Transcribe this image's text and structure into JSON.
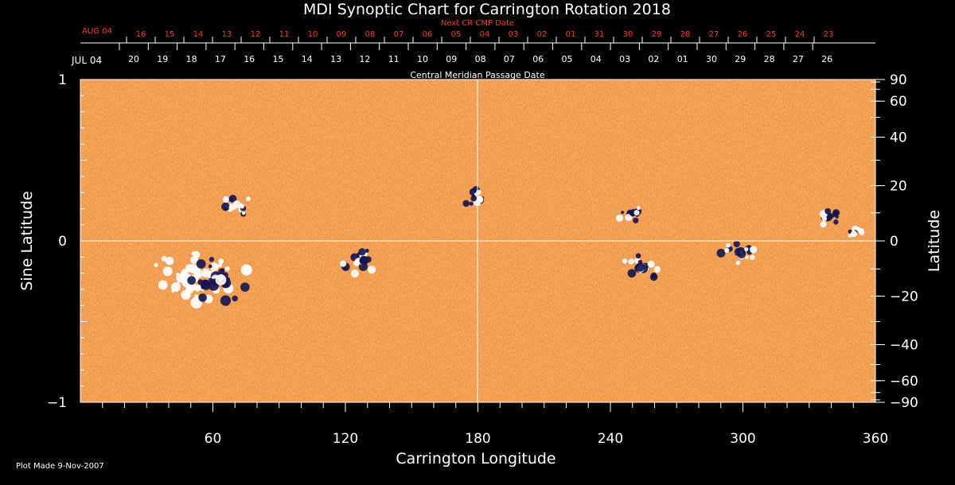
{
  "title": "MDI Synoptic Chart for Carrington Rotation 2018",
  "footer": "Plot Made  9-Nov-2007",
  "colors": {
    "background": "#000000",
    "foreground": "#ffffff",
    "next_cr_labels": "#ff3a1a",
    "map_base": "#e8501a",
    "map_light": "#ffb347",
    "map_dark": "#b5290f",
    "positive_polarity": "#ffffff",
    "negative_polarity": "#1a1a5e"
  },
  "chart_data": {
    "type": "heatmap",
    "title": "MDI Synoptic Chart for Carrington Rotation 2018",
    "xlabel": "Carrington Longitude",
    "ylabel_left": "Sine Latitude",
    "ylabel_right": "Latitude",
    "xlim": [
      0,
      360
    ],
    "ylim": [
      -1,
      1
    ],
    "x_ticks": [
      60,
      120,
      180,
      240,
      300,
      360
    ],
    "y_ticks_left": [
      {
        "value": 1,
        "label": "1"
      },
      {
        "value": 0,
        "label": "0"
      },
      {
        "value": -1,
        "label": "−1"
      }
    ],
    "y_ticks_right": [
      90,
      60,
      40,
      20,
      0,
      -20,
      -40,
      -60,
      -90
    ],
    "cmp_axis": {
      "label": "Central Meridian Passage Date",
      "start_label": "JUL 04",
      "dates": [
        "20",
        "19",
        "18",
        "17",
        "16",
        "15",
        "14",
        "13",
        "12",
        "11",
        "10",
        "09",
        "08",
        "07",
        "06",
        "05",
        "04",
        "03",
        "02",
        "01",
        "30",
        "29",
        "28",
        "27",
        "26"
      ]
    },
    "next_cr_axis": {
      "label": "Next CR CMP Date",
      "start_label": "AUG 04",
      "dates": [
        "16",
        "15",
        "14",
        "13",
        "12",
        "11",
        "10",
        "09",
        "08",
        "07",
        "06",
        "05",
        "04",
        "03",
        "02",
        "01",
        "31",
        "30",
        "29",
        "28",
        "27",
        "26",
        "25",
        "24",
        "23"
      ]
    },
    "grid": "center lines at longitude 180 and sine latitude 0",
    "active_regions": [
      {
        "lon": 50,
        "sinlat": -0.23,
        "size": 3.0,
        "positive": 1.0
      },
      {
        "lon": 62,
        "sinlat": -0.25,
        "size": 2.6,
        "positive": 0.2
      },
      {
        "lon": 72,
        "sinlat": 0.23,
        "size": 1.2,
        "positive": 0.55
      },
      {
        "lon": 126,
        "sinlat": -0.13,
        "size": 1.4,
        "positive": 0.5
      },
      {
        "lon": 178,
        "sinlat": 0.27,
        "size": 0.9,
        "positive": 0.5
      },
      {
        "lon": 250,
        "sinlat": 0.17,
        "size": 1.1,
        "positive": 0.45
      },
      {
        "lon": 254,
        "sinlat": -0.17,
        "size": 1.5,
        "positive": 0.45
      },
      {
        "lon": 298,
        "sinlat": -0.07,
        "size": 1.4,
        "positive": 0.5
      },
      {
        "lon": 338,
        "sinlat": 0.15,
        "size": 1.0,
        "positive": 0.4
      },
      {
        "lon": 350,
        "sinlat": 0.05,
        "size": 0.6,
        "positive": 0.5
      }
    ]
  }
}
